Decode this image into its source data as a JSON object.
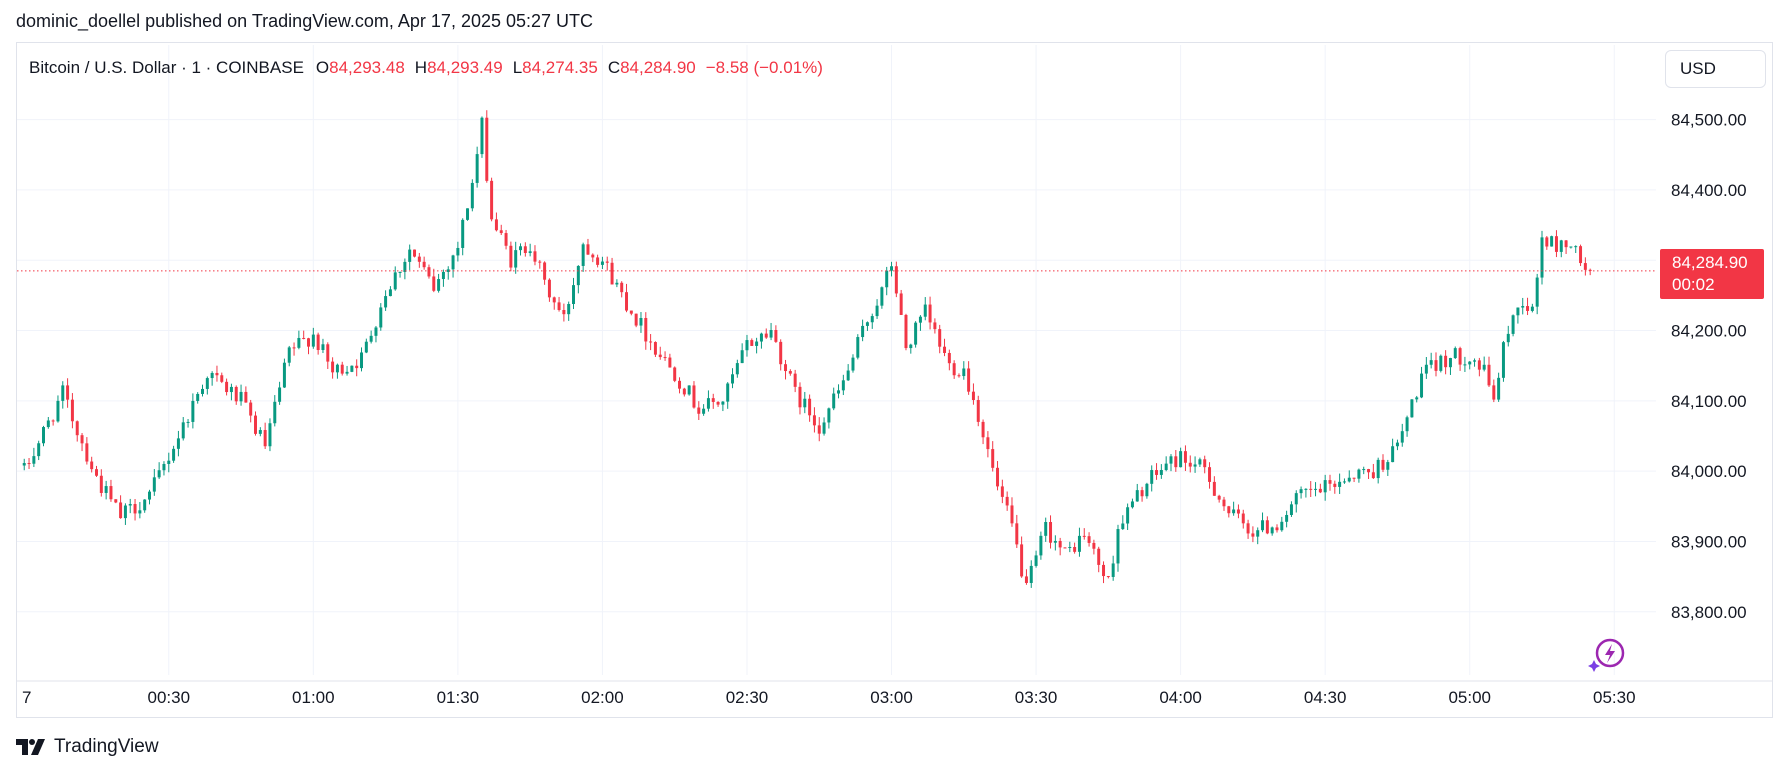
{
  "header": {
    "publisher_line": "dominic_doellel published on TradingView.com, Apr 17, 2025 05:27 UTC"
  },
  "legend": {
    "symbol": "Bitcoin / U.S. Dollar · 1 · COINBASE",
    "open_label": "O",
    "open": "84,293.48",
    "high_label": "H",
    "high": "84,293.49",
    "low_label": "L",
    "low": "84,274.35",
    "close_label": "C",
    "close": "84,284.90",
    "change": "−8.58 (−0.01%)"
  },
  "currency": "USD",
  "last_price": {
    "price": "84,284.90",
    "countdown": "00:02"
  },
  "branding": {
    "name": "TradingView"
  },
  "colors": {
    "up": "#089981",
    "down": "#f23645",
    "grid": "#f0f3fa",
    "text": "#131722",
    "accent": "#9c27b0"
  },
  "icons": {
    "flash": "lightning-circle-icon",
    "logo": "tradingview-logo-icon"
  },
  "chart_data": {
    "type": "candlestick",
    "interval": "1 minute",
    "y_ticks": [
      "84,500.00",
      "84,400.00",
      "84,300.00",
      "84,200.00",
      "84,100.00",
      "84,000.00",
      "83,900.00",
      "83,800.00"
    ],
    "x_ticks": [
      "7",
      "00:30",
      "01:00",
      "01:30",
      "02:00",
      "02:30",
      "03:00",
      "03:30",
      "04:00",
      "04:30",
      "05:00",
      "05:30"
    ],
    "ylim": [
      83720,
      84535
    ],
    "last_price": 84284.9,
    "grid": true,
    "points": [
      {
        "t": "00:00",
        "c": 84000
      },
      {
        "t": "00:08",
        "c": 84110
      },
      {
        "t": "00:15",
        "c": 83990
      },
      {
        "t": "00:20",
        "c": 83935
      },
      {
        "t": "00:26",
        "c": 83965
      },
      {
        "t": "00:32",
        "c": 84050
      },
      {
        "t": "00:38",
        "c": 84140
      },
      {
        "t": "00:45",
        "c": 84100
      },
      {
        "t": "00:50",
        "c": 84035
      },
      {
        "t": "00:55",
        "c": 84170
      },
      {
        "t": "01:00",
        "c": 84195
      },
      {
        "t": "01:04",
        "c": 84140
      },
      {
        "t": "01:10",
        "c": 84160
      },
      {
        "t": "01:15",
        "c": 84255
      },
      {
        "t": "01:20",
        "c": 84315
      },
      {
        "t": "01:25",
        "c": 84260
      },
      {
        "t": "01:30",
        "c": 84320
      },
      {
        "t": "01:33",
        "c": 84410
      },
      {
        "t": "01:35",
        "c": 84490
      },
      {
        "t": "01:37",
        "c": 84360
      },
      {
        "t": "01:41",
        "c": 84300
      },
      {
        "t": "01:45",
        "c": 84325
      },
      {
        "t": "01:48",
        "c": 84265
      },
      {
        "t": "01:52",
        "c": 84215
      },
      {
        "t": "01:56",
        "c": 84325
      },
      {
        "t": "02:00",
        "c": 84300
      },
      {
        "t": "02:05",
        "c": 84240
      },
      {
        "t": "02:10",
        "c": 84185
      },
      {
        "t": "02:15",
        "c": 84140
      },
      {
        "t": "02:20",
        "c": 84090
      },
      {
        "t": "02:25",
        "c": 84100
      },
      {
        "t": "02:30",
        "c": 84180
      },
      {
        "t": "02:35",
        "c": 84200
      },
      {
        "t": "02:40",
        "c": 84110
      },
      {
        "t": "02:45",
        "c": 84065
      },
      {
        "t": "02:50",
        "c": 84125
      },
      {
        "t": "02:55",
        "c": 84215
      },
      {
        "t": "02:58",
        "c": 84255
      },
      {
        "t": "03:00",
        "c": 84295
      },
      {
        "t": "03:03",
        "c": 84175
      },
      {
        "t": "03:07",
        "c": 84225
      },
      {
        "t": "03:12",
        "c": 84150
      },
      {
        "t": "03:15",
        "c": 84145
      },
      {
        "t": "03:18",
        "c": 84080
      },
      {
        "t": "03:22",
        "c": 83975
      },
      {
        "t": "03:25",
        "c": 83920
      },
      {
        "t": "03:28",
        "c": 83830
      },
      {
        "t": "03:32",
        "c": 83920
      },
      {
        "t": "03:36",
        "c": 83880
      },
      {
        "t": "03:40",
        "c": 83910
      },
      {
        "t": "03:45",
        "c": 83840
      },
      {
        "t": "03:47",
        "c": 83920
      },
      {
        "t": "03:52",
        "c": 83975
      },
      {
        "t": "03:57",
        "c": 84010
      },
      {
        "t": "04:00",
        "c": 84020
      },
      {
        "t": "04:05",
        "c": 84000
      },
      {
        "t": "04:10",
        "c": 83940
      },
      {
        "t": "04:15",
        "c": 83915
      },
      {
        "t": "04:20",
        "c": 83925
      },
      {
        "t": "04:25",
        "c": 83965
      },
      {
        "t": "04:30",
        "c": 83975
      },
      {
        "t": "04:35",
        "c": 83995
      },
      {
        "t": "04:40",
        "c": 84000
      },
      {
        "t": "04:45",
        "c": 84035
      },
      {
        "t": "04:50",
        "c": 84135
      },
      {
        "t": "04:55",
        "c": 84160
      },
      {
        "t": "05:00",
        "c": 84165
      },
      {
        "t": "05:03",
        "c": 84140
      },
      {
        "t": "05:05",
        "c": 84105
      },
      {
        "t": "05:08",
        "c": 84205
      },
      {
        "t": "05:11",
        "c": 84245
      },
      {
        "t": "05:13",
        "c": 84225
      },
      {
        "t": "05:15",
        "c": 84330
      },
      {
        "t": "05:18",
        "c": 84320
      },
      {
        "t": "05:21",
        "c": 84325
      },
      {
        "t": "05:23",
        "c": 84295
      },
      {
        "t": "05:25",
        "c": 84285
      }
    ]
  }
}
